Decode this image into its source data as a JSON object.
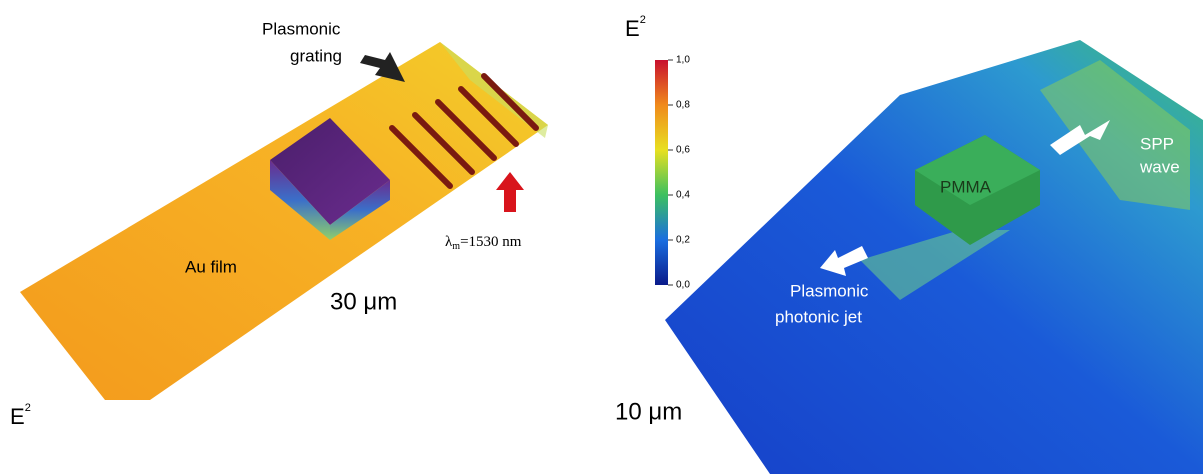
{
  "left_panel": {
    "grating_label": [
      "Plasmonic",
      "grating"
    ],
    "film_label": "Au film",
    "scale_label": "30 μm",
    "wavelength_label": {
      "symbol": "λ",
      "sub": "m",
      "rest": "=1530 nm"
    },
    "field_label": {
      "base": "E",
      "sup": "2"
    }
  },
  "right_panel": {
    "field_label": {
      "base": "E",
      "sup": "2"
    },
    "colorbar_ticks": [
      "1,0",
      "0,8",
      "0,6",
      "0,4",
      "0,2",
      "0,0"
    ],
    "block_label": "PMMA",
    "wave_label": [
      "SPP",
      "wave"
    ],
    "jet_label": [
      "Plasmonic",
      "photonic jet"
    ],
    "scale_label": "10 μm"
  }
}
